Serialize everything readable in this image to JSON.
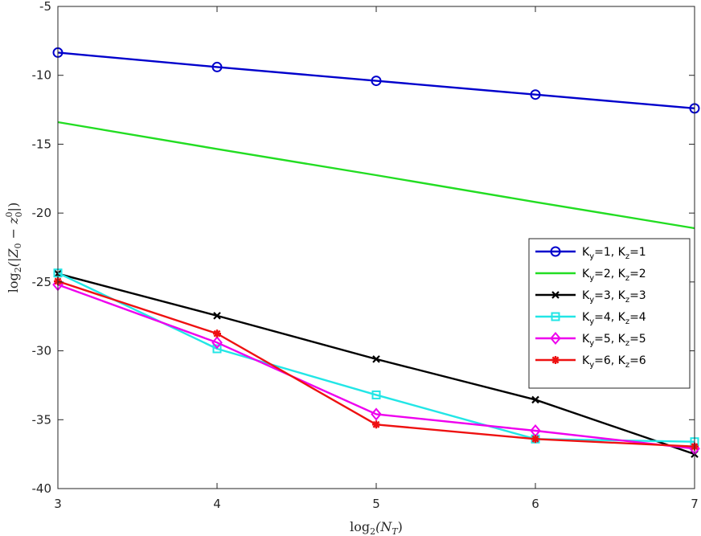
{
  "chart_data": {
    "type": "line",
    "xlabel": "log₂(N_T)",
    "ylabel": "log₂(|Z₀ − z₀⁰|)",
    "xlim": [
      3,
      7
    ],
    "ylim": [
      -40,
      -5
    ],
    "xticks": [
      3,
      4,
      5,
      6,
      7
    ],
    "yticks": [
      -40,
      -35,
      -30,
      -25,
      -20,
      -15,
      -10,
      -5
    ],
    "xtick_labels": [
      "3",
      "4",
      "5",
      "6",
      "7"
    ],
    "ytick_labels": [
      "-40",
      "-35",
      "-30",
      "-25",
      "-20",
      "-15",
      "-10",
      "-5"
    ],
    "grid": false,
    "legend_position": "right",
    "x": [
      3,
      4,
      5,
      6,
      7
    ],
    "series": [
      {
        "name": "K_y=1, K_z=1",
        "color": "#0000cc",
        "marker": "circle",
        "values": [
          -8.35,
          -9.4,
          -10.4,
          -11.4,
          -12.4
        ]
      },
      {
        "name": "K_y=2, K_z=2",
        "color": "#22dd22",
        "marker": "none",
        "values": [
          -13.4,
          -15.35,
          -17.25,
          -19.2,
          -21.1
        ]
      },
      {
        "name": "K_y=3, K_z=3",
        "color": "#000000",
        "marker": "x",
        "values": [
          -24.4,
          -27.45,
          -30.6,
          -33.55,
          -37.5
        ]
      },
      {
        "name": "K_y=4, K_z=4",
        "color": "#22e6e6",
        "marker": "square",
        "values": [
          -24.35,
          -29.85,
          -33.2,
          -36.4,
          -36.6
        ]
      },
      {
        "name": "K_y=5, K_z=5",
        "color": "#ee00ee",
        "marker": "diamond",
        "values": [
          -25.2,
          -29.4,
          -34.6,
          -35.8,
          -37.1
        ]
      },
      {
        "name": "K_y=6, K_z=6",
        "color": "#ee1111",
        "marker": "asterisk",
        "values": [
          -24.95,
          -28.75,
          -35.35,
          -36.4,
          -36.95
        ]
      }
    ],
    "legend": [
      {
        "base": "K",
        "sub1": "y",
        "mid": "=1, K",
        "sub2": "z",
        "end": "=1"
      },
      {
        "base": "K",
        "sub1": "y",
        "mid": "=2, K",
        "sub2": "z",
        "end": "=2"
      },
      {
        "base": "K",
        "sub1": "y",
        "mid": "=3, K",
        "sub2": "z",
        "end": "=3"
      },
      {
        "base": "K",
        "sub1": "y",
        "mid": "=4, K",
        "sub2": "z",
        "end": "=4"
      },
      {
        "base": "K",
        "sub1": "y",
        "mid": "=5, K",
        "sub2": "z",
        "end": "=5"
      },
      {
        "base": "K",
        "sub1": "y",
        "mid": "=6, K",
        "sub2": "z",
        "end": "=6"
      }
    ]
  },
  "axis_text": {
    "xlabel_base": "log",
    "xlabel_sub": "2",
    "xlabel_rest": "(N",
    "xlabel_sub2": "T",
    "xlabel_close": ")",
    "ylabel_base": "log",
    "ylabel_sub": "2",
    "ylabel_rest": "(|Z",
    "ylabel_sub2": "0",
    "ylabel_mid": " − z",
    "ylabel_sup": "0",
    "ylabel_sub3": "0",
    "ylabel_close": "|)"
  }
}
